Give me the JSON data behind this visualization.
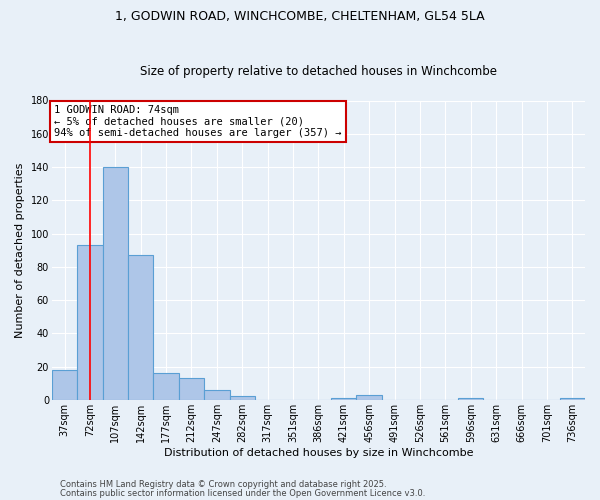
{
  "title1": "1, GODWIN ROAD, WINCHCOMBE, CHELTENHAM, GL54 5LA",
  "title2": "Size of property relative to detached houses in Winchcombe",
  "xlabel": "Distribution of detached houses by size in Winchcombe",
  "ylabel": "Number of detached properties",
  "categories": [
    "37sqm",
    "72sqm",
    "107sqm",
    "142sqm",
    "177sqm",
    "212sqm",
    "247sqm",
    "282sqm",
    "317sqm",
    "351sqm",
    "386sqm",
    "421sqm",
    "456sqm",
    "491sqm",
    "526sqm",
    "561sqm",
    "596sqm",
    "631sqm",
    "666sqm",
    "701sqm",
    "736sqm"
  ],
  "values": [
    18,
    93,
    140,
    87,
    16,
    13,
    6,
    2,
    0,
    0,
    0,
    1,
    3,
    0,
    0,
    0,
    1,
    0,
    0,
    0,
    1
  ],
  "bar_color": "#aec6e8",
  "bar_edge_color": "#5a9fd4",
  "bg_color": "#e8f0f8",
  "grid_color": "#ffffff",
  "red_line_x": 1,
  "annotation_title": "1 GODWIN ROAD: 74sqm",
  "annotation_line1": "← 5% of detached houses are smaller (20)",
  "annotation_line2": "94% of semi-detached houses are larger (357) →",
  "annotation_box_color": "#ffffff",
  "annotation_box_edge": "#cc0000",
  "ylim": [
    0,
    180
  ],
  "yticks": [
    0,
    20,
    40,
    60,
    80,
    100,
    120,
    140,
    160,
    180
  ],
  "footer1": "Contains HM Land Registry data © Crown copyright and database right 2025.",
  "footer2": "Contains public sector information licensed under the Open Government Licence v3.0.",
  "title1_fontsize": 9,
  "title2_fontsize": 8.5,
  "xlabel_fontsize": 8,
  "ylabel_fontsize": 8,
  "tick_fontsize": 7,
  "annot_fontsize": 7.5,
  "footer_fontsize": 6
}
